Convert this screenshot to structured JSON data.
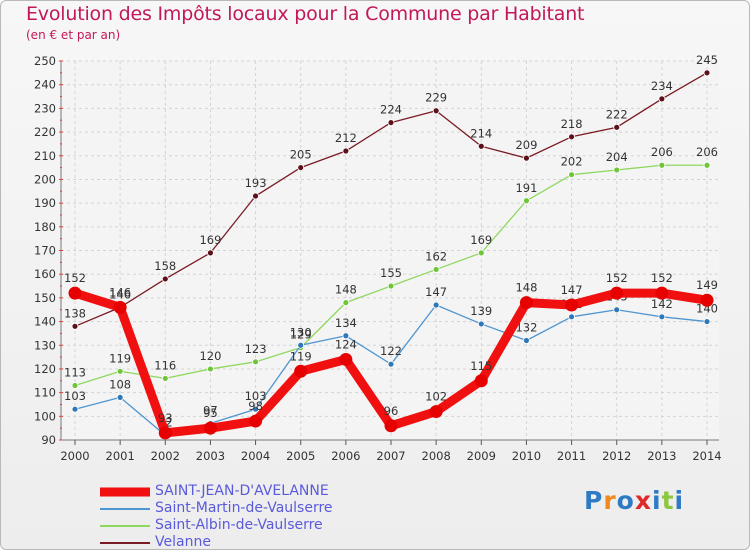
{
  "header": {
    "title": "Evolution des Impôts locaux pour la Commune par Habitant",
    "subtitle": "(en € et par an)"
  },
  "logo": {
    "text": "Proxiti",
    "letters": [
      {
        "char": "P",
        "color": "#2e7bc4"
      },
      {
        "char": "r",
        "color": "#f08a1c"
      },
      {
        "char": "o",
        "color": "#2e7bc4"
      },
      {
        "char": "x",
        "color": "#e02a2a"
      },
      {
        "char": "i",
        "color": "#2e7bc4"
      },
      {
        "char": "t",
        "color": "#8dc63f"
      },
      {
        "char": "i",
        "color": "#2e7bc4"
      }
    ]
  },
  "chart_data": {
    "type": "line",
    "title": "Evolution des Impôts locaux pour la Commune par Habitant",
    "ylabel": "(en € et par an)",
    "xlabel": "",
    "categories": [
      "2000",
      "2001",
      "2002",
      "2003",
      "2004",
      "2005",
      "2006",
      "2007",
      "2008",
      "2009",
      "2010",
      "2011",
      "2012",
      "2013",
      "2014"
    ],
    "ylim": [
      90,
      250
    ],
    "yticks": [
      90,
      100,
      110,
      120,
      130,
      140,
      150,
      160,
      170,
      180,
      190,
      200,
      210,
      220,
      230,
      240,
      250
    ],
    "grid": true,
    "legend_position": "bottom-left",
    "series": [
      {
        "name": "Velanne",
        "color": "#7a1a24",
        "marker": "#5c1019",
        "style": "thin",
        "values": [
          138,
          146,
          158,
          169,
          193,
          205,
          212,
          224,
          229,
          214,
          209,
          218,
          222,
          234,
          245
        ],
        "labels": [
          "138",
          "146",
          "158",
          "169",
          "193",
          "205",
          "212",
          "224",
          "229",
          "214",
          "209",
          "218",
          "222",
          "234",
          "245"
        ]
      },
      {
        "name": "Saint-Albin-de-Vaulserre",
        "color": "#8fd85f",
        "marker": "#6fc43a",
        "style": "thin",
        "values": [
          113,
          119,
          116,
          120,
          123,
          129,
          148,
          155,
          162,
          169,
          191,
          202,
          204,
          206,
          206
        ],
        "labels": [
          "113",
          "119",
          "116",
          "120",
          "123",
          "129",
          "148",
          "155",
          "162",
          "169",
          "191",
          "202",
          "204",
          "206",
          "206"
        ]
      },
      {
        "name": "Saint-Martin-de-Vaulserre",
        "color": "#4f95cf",
        "marker": "#2f78b8",
        "style": "thin",
        "values": [
          103,
          108,
          92,
          97,
          103,
          130,
          134,
          122,
          147,
          139,
          132,
          142,
          145,
          142,
          140
        ],
        "labels": [
          "103",
          "108",
          "92",
          "97",
          "103",
          "130",
          "134",
          "122",
          "147",
          "139",
          "132",
          "142",
          "145",
          "142",
          "140"
        ]
      },
      {
        "name": "SAINT-JEAN-D'AVELANNE",
        "color": "#f01010",
        "marker": "#e60000",
        "style": "thick",
        "values": [
          152,
          146,
          93,
          95,
          98,
          119,
          124,
          96,
          102,
          115,
          148,
          147,
          152,
          152,
          149
        ],
        "labels": [
          "152",
          "146",
          "93",
          "95",
          "98",
          "119",
          "124",
          "96",
          "102",
          "115",
          "148",
          "147",
          "152",
          "152",
          "149"
        ]
      }
    ],
    "legend_order": [
      "SAINT-JEAN-D'AVELANNE",
      "Saint-Martin-de-Vaulserre",
      "Saint-Albin-de-Vaulserre",
      "Velanne"
    ]
  }
}
